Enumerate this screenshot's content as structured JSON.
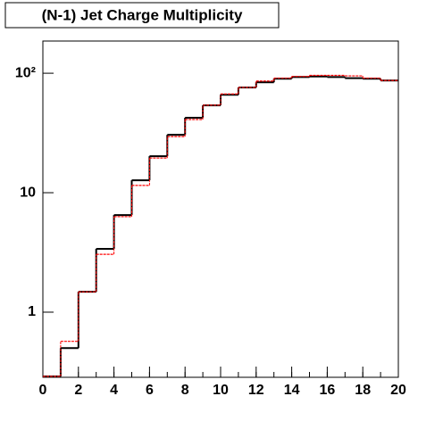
{
  "chart_data": {
    "type": "histogram",
    "title": "(N-1) Jet Charge Multiplicity",
    "bins": [
      0,
      1,
      2,
      3,
      4,
      5,
      6,
      7,
      8,
      9,
      10,
      11,
      12,
      13,
      14,
      15,
      16,
      17,
      18,
      19,
      20
    ],
    "series": [
      {
        "color": "#000000",
        "values": [
          0.29,
          0.5,
          1.48,
          3.39,
          6.5,
          12.7,
          20.2,
          30.5,
          42.4,
          53.8,
          66,
          76,
          84,
          90,
          93,
          94,
          93,
          91,
          90,
          87
        ]
      },
      {
        "color": "#ff0000",
        "values": [
          0.29,
          0.57,
          1.48,
          3.05,
          6.3,
          11.5,
          19.5,
          29.5,
          41,
          54,
          67,
          76,
          86,
          91,
          94,
          96,
          96,
          95,
          91,
          87
        ]
      }
    ],
    "xlim": [
      0,
      20
    ],
    "xticks": [
      0,
      2,
      4,
      6,
      8,
      10,
      12,
      14,
      16,
      18,
      20
    ],
    "ylim": [
      0.285,
      186
    ],
    "yticks": [
      1,
      10,
      {
        "value": 100,
        "label": "10²"
      }
    ],
    "log_y": true
  }
}
